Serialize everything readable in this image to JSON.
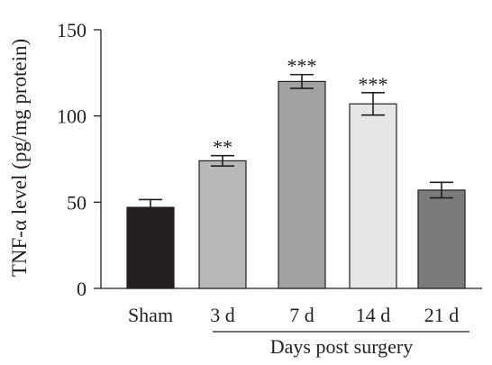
{
  "chart_data": {
    "type": "bar",
    "title": "",
    "ylabel": "TNF-α level (pg/mg protein)",
    "xlabel": "Days post surgery",
    "ylim": [
      0,
      150
    ],
    "yticks": [
      0,
      50,
      100,
      150
    ],
    "categories": [
      "Sham",
      "3 d",
      "7 d",
      "14 d",
      "21 d"
    ],
    "values": [
      47,
      74,
      120,
      107,
      57
    ],
    "errors": [
      4.5,
      3,
      4,
      6.5,
      4.5
    ],
    "significance": [
      "",
      "**",
      "***",
      "***",
      ""
    ],
    "bar_colors": [
      "#231f20",
      "#b7b7b7",
      "#a2a2a2",
      "#e6e6e6",
      "#7b7b7b"
    ],
    "grid": false,
    "legend": "none"
  }
}
